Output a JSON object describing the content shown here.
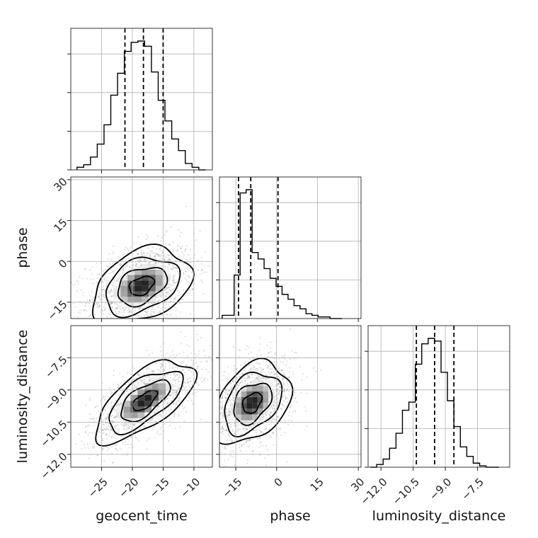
{
  "chart_data": {
    "type": "corner",
    "title": "",
    "parameters": [
      "geocent_time",
      "phase",
      "luminosity_distance"
    ],
    "labels": {
      "x_bottom": [
        "geocent_time",
        "phase",
        "luminosity_distance"
      ],
      "y_left": [
        "phase",
        "luminosity_distance"
      ]
    },
    "ranges": {
      "geocent_time": [
        -30.0,
        -7.0
      ],
      "phase": [
        -21.0,
        31.0
      ],
      "luminosity_distance": [
        -12.6,
        -6.0
      ]
    },
    "ticks": {
      "geocent_time": [
        {
          "v": -25,
          "label": "−25"
        },
        {
          "v": -20,
          "label": "−20"
        },
        {
          "v": -15,
          "label": "−15"
        },
        {
          "v": -10,
          "label": "−10"
        }
      ],
      "phase": [
        {
          "v": -15,
          "label": "−15"
        },
        {
          "v": 0,
          "label": "0"
        },
        {
          "v": 15,
          "label": "15"
        },
        {
          "v": 30,
          "label": "30"
        }
      ],
      "luminosity_distance": [
        {
          "v": -12.0,
          "label": "−12.0"
        },
        {
          "v": -10.5,
          "label": "−10.5"
        },
        {
          "v": -9.0,
          "label": "−9.0"
        },
        {
          "v": -7.5,
          "label": "−7.5"
        }
      ]
    },
    "quantiles": {
      "geocent_time": [
        -21.2,
        -18.2,
        -15.0
      ],
      "phase": [
        -14.0,
        -9.5,
        0.5
      ],
      "luminosity_distance": [
        -10.35,
        -9.5,
        -8.6
      ]
    },
    "histograms": {
      "geocent_time": {
        "bin_edges": [
          -29.0,
          -27.9,
          -26.8,
          -25.7,
          -24.6,
          -23.5,
          -22.4,
          -21.3,
          -20.2,
          -19.1,
          -18.0,
          -16.9,
          -15.8,
          -14.7,
          -13.6,
          -12.5,
          -11.4,
          -10.3,
          -9.2,
          -8.1
        ],
        "counts": [
          2,
          4,
          10,
          20,
          35,
          58,
          75,
          92,
          99,
          100,
          96,
          76,
          54,
          38,
          24,
          15,
          5,
          2,
          0
        ]
      },
      "phase": {
        "bin_edges": [
          -20.0,
          -17.8,
          -15.6,
          -13.4,
          -11.2,
          -9.0,
          -6.8,
          -4.6,
          -2.4,
          -0.2,
          2.0,
          4.2,
          6.4,
          8.6,
          10.8,
          13.0,
          15.2,
          17.4,
          19.6,
          21.8,
          24.0
        ],
        "counts": [
          2,
          2,
          27,
          78,
          80,
          41,
          37,
          31,
          25,
          20,
          15,
          12,
          8,
          6,
          3,
          2,
          1,
          1,
          0,
          0
        ]
      },
      "luminosity_distance": {
        "bin_edges": [
          -12.5,
          -12.2,
          -11.9,
          -11.6,
          -11.3,
          -11.0,
          -10.7,
          -10.4,
          -10.1,
          -9.8,
          -9.5,
          -9.2,
          -8.9,
          -8.6,
          -8.3,
          -8.0,
          -7.7,
          -7.4,
          -7.1,
          -6.8,
          -6.5
        ],
        "counts": [
          0,
          2,
          6,
          14,
          25,
          42,
          48,
          76,
          91,
          95,
          93,
          70,
          49,
          30,
          15,
          8,
          3,
          1,
          0,
          0
        ]
      }
    },
    "pairs": [
      {
        "x": "geocent_time",
        "y": "phase",
        "mean": [
          -18.5,
          -9.0
        ],
        "std": [
          4.0,
          7.0
        ],
        "corr": 0.35,
        "contour_levels_sigma": [
          0.5,
          1.0,
          1.5,
          2.0
        ]
      },
      {
        "x": "geocent_time",
        "y": "luminosity_distance",
        "mean": [
          -18.0,
          -9.5
        ],
        "std": [
          4.0,
          0.95
        ],
        "corr": 0.65,
        "contour_levels_sigma": [
          0.5,
          1.0,
          1.5,
          2.0
        ]
      },
      {
        "x": "phase",
        "y": "luminosity_distance",
        "mean": [
          -9.0,
          -9.6
        ],
        "std": [
          7.0,
          0.95
        ],
        "corr": 0.35,
        "contour_levels_sigma": [
          0.5,
          1.0,
          1.5,
          2.0
        ]
      }
    ],
    "grid": true
  }
}
